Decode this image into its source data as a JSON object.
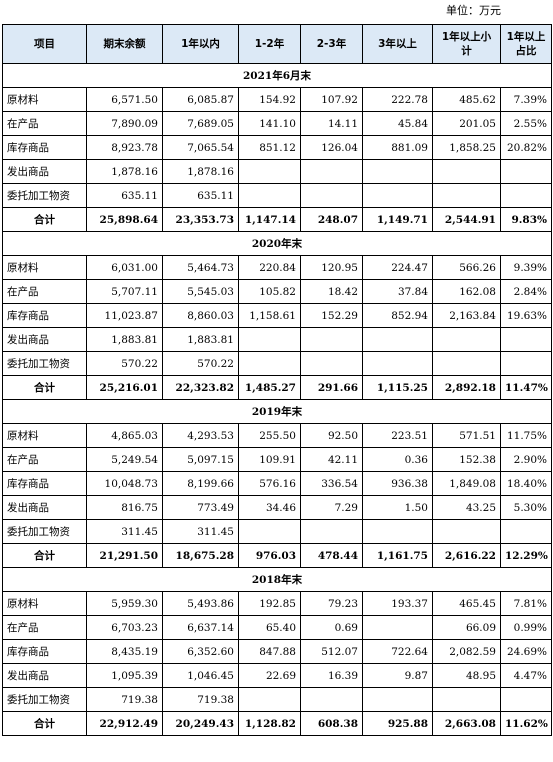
{
  "unit_label": "单位：万元",
  "headers": [
    "项目",
    "期末余额",
    "1年以内",
    "1-2年",
    "2-3年",
    "3年以上",
    "1年以上小计",
    "1年以上占比"
  ],
  "sections": [
    {
      "title": "2021年6月末",
      "rows": [
        [
          "原材料",
          "6,571.50",
          "6,085.87",
          "154.92",
          "107.92",
          "222.78",
          "485.62",
          "7.39%"
        ],
        [
          "在产品",
          "7,890.09",
          "7,689.05",
          "141.10",
          "14.11",
          "45.84",
          "201.05",
          "2.55%"
        ],
        [
          "库存商品",
          "8,923.78",
          "7,065.54",
          "851.12",
          "126.04",
          "881.09",
          "1,858.25",
          "20.82%"
        ],
        [
          "发出商品",
          "1,878.16",
          "1,878.16",
          "",
          "",
          "",
          "",
          ""
        ],
        [
          "委托加工物资",
          "635.11",
          "635.11",
          "",
          "",
          "",
          "",
          ""
        ]
      ],
      "total": [
        "合计",
        "25,898.64",
        "23,353.73",
        "1,147.14",
        "248.07",
        "1,149.71",
        "2,544.91",
        "9.83%"
      ]
    },
    {
      "title": "2020年末",
      "rows": [
        [
          "原材料",
          "6,031.00",
          "5,464.73",
          "220.84",
          "120.95",
          "224.47",
          "566.26",
          "9.39%"
        ],
        [
          "在产品",
          "5,707.11",
          "5,545.03",
          "105.82",
          "18.42",
          "37.84",
          "162.08",
          "2.84%"
        ],
        [
          "库存商品",
          "11,023.87",
          "8,860.03",
          "1,158.61",
          "152.29",
          "852.94",
          "2,163.84",
          "19.63%"
        ],
        [
          "发出商品",
          "1,883.81",
          "1,883.81",
          "",
          "",
          "",
          "",
          ""
        ],
        [
          "委托加工物资",
          "570.22",
          "570.22",
          "",
          "",
          "",
          "",
          ""
        ]
      ],
      "total": [
        "合计",
        "25,216.01",
        "22,323.82",
        "1,485.27",
        "291.66",
        "1,115.25",
        "2,892.18",
        "11.47%"
      ]
    },
    {
      "title": "2019年末",
      "rows": [
        [
          "原材料",
          "4,865.03",
          "4,293.53",
          "255.50",
          "92.50",
          "223.51",
          "571.51",
          "11.75%"
        ],
        [
          "在产品",
          "5,249.54",
          "5,097.15",
          "109.91",
          "42.11",
          "0.36",
          "152.38",
          "2.90%"
        ],
        [
          "库存商品",
          "10,048.73",
          "8,199.66",
          "576.16",
          "336.54",
          "936.38",
          "1,849.08",
          "18.40%"
        ],
        [
          "发出商品",
          "816.75",
          "773.49",
          "34.46",
          "7.29",
          "1.50",
          "43.25",
          "5.30%"
        ],
        [
          "委托加工物资",
          "311.45",
          "311.45",
          "",
          "",
          "",
          "",
          ""
        ]
      ],
      "total": [
        "合计",
        "21,291.50",
        "18,675.28",
        "976.03",
        "478.44",
        "1,161.75",
        "2,616.22",
        "12.29%"
      ]
    },
    {
      "title": "2018年末",
      "rows": [
        [
          "原材料",
          "5,959.30",
          "5,493.86",
          "192.85",
          "79.23",
          "193.37",
          "465.45",
          "7.81%"
        ],
        [
          "在产品",
          "6,703.23",
          "6,637.14",
          "65.40",
          "0.69",
          "",
          "66.09",
          "0.99%"
        ],
        [
          "库存商品",
          "8,435.19",
          "6,352.60",
          "847.88",
          "512.07",
          "722.64",
          "2,082.59",
          "24.69%"
        ],
        [
          "发出商品",
          "1,095.39",
          "1,046.45",
          "22.69",
          "16.39",
          "9.87",
          "48.95",
          "4.47%"
        ],
        [
          "委托加工物资",
          "719.38",
          "719.38",
          "",
          "",
          "",
          "",
          ""
        ]
      ],
      "total": [
        "合计",
        "22,912.49",
        "20,249.43",
        "1,128.82",
        "608.38",
        "925.88",
        "2,663.08",
        "11.62%"
      ]
    }
  ]
}
